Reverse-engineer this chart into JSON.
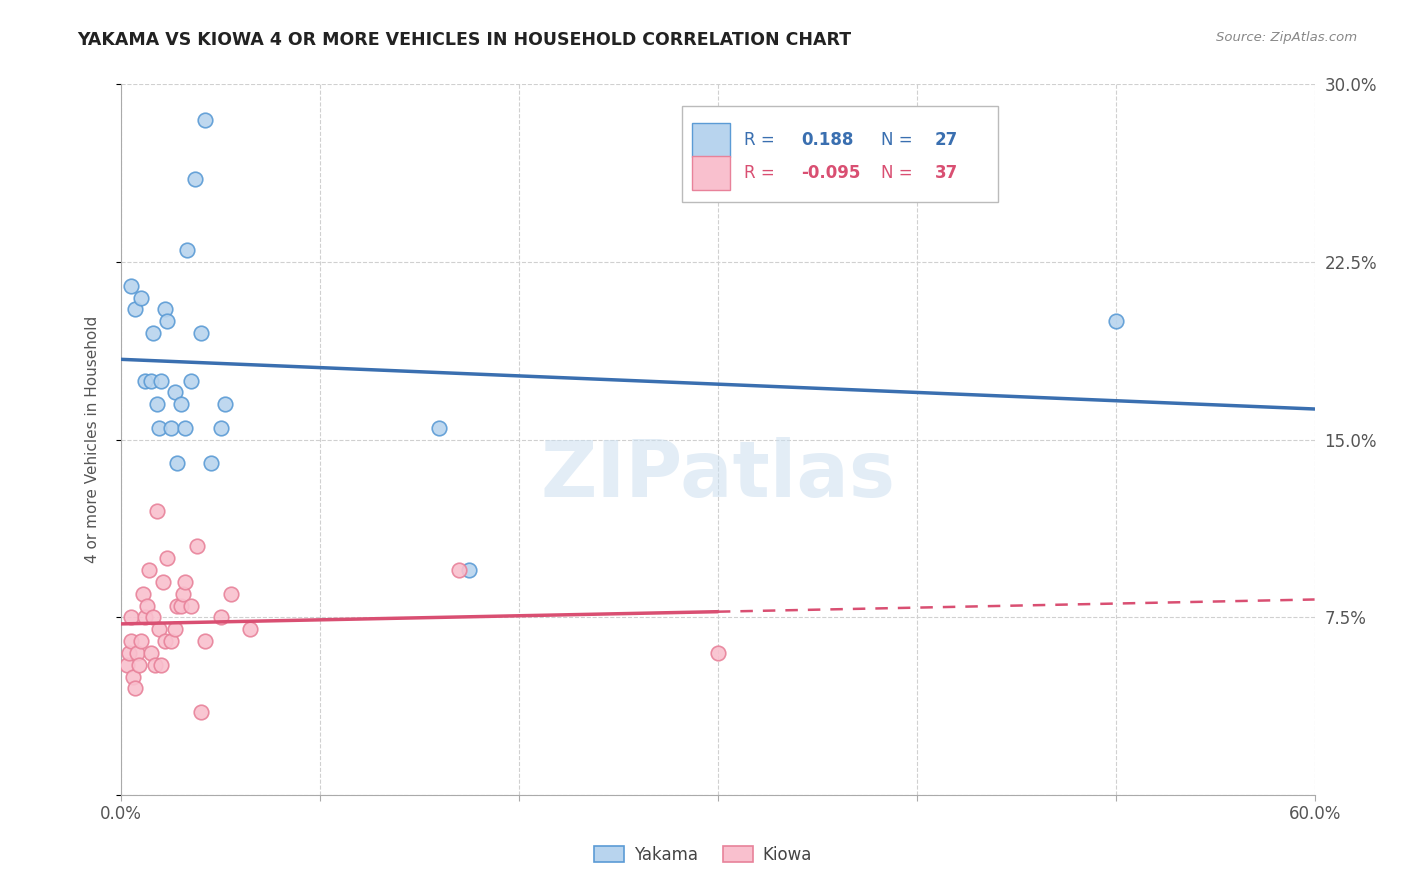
{
  "title": "YAKAMA VS KIOWA 4 OR MORE VEHICLES IN HOUSEHOLD CORRELATION CHART",
  "source": "Source: ZipAtlas.com",
  "ylabel": "4 or more Vehicles in Household",
  "watermark": "ZIPatlas",
  "xlim": [
    0.0,
    0.6
  ],
  "ylim": [
    0.0,
    0.3
  ],
  "xticks": [
    0.0,
    0.1,
    0.2,
    0.3,
    0.4,
    0.5,
    0.6
  ],
  "xtick_labels": [
    "0.0%",
    "",
    "",
    "",
    "",
    "",
    "60.0%"
  ],
  "yticks": [
    0.0,
    0.075,
    0.15,
    0.225,
    0.3
  ],
  "ytick_right_labels": [
    "",
    "7.5%",
    "15.0%",
    "22.5%",
    "30.0%"
  ],
  "yakama_R": 0.188,
  "yakama_N": 27,
  "kiowa_R": -0.095,
  "kiowa_N": 37,
  "yakama_fill": "#b8d4ee",
  "kiowa_fill": "#f9c0ce",
  "yakama_edge": "#5b9bd5",
  "kiowa_edge": "#e8829a",
  "yakama_line": "#3a6fb0",
  "kiowa_line": "#d94f72",
  "background": "#ffffff",
  "grid_color": "#d0d0d0",
  "yakama_x": [
    0.005,
    0.007,
    0.01,
    0.012,
    0.015,
    0.016,
    0.018,
    0.019,
    0.02,
    0.022,
    0.023,
    0.025,
    0.027,
    0.028,
    0.03,
    0.032,
    0.033,
    0.035,
    0.037,
    0.04,
    0.042,
    0.045,
    0.05,
    0.052,
    0.16,
    0.175,
    0.5
  ],
  "yakama_y": [
    0.215,
    0.205,
    0.21,
    0.175,
    0.175,
    0.195,
    0.165,
    0.155,
    0.175,
    0.205,
    0.2,
    0.155,
    0.17,
    0.14,
    0.165,
    0.155,
    0.23,
    0.175,
    0.26,
    0.195,
    0.285,
    0.14,
    0.155,
    0.165,
    0.155,
    0.095,
    0.2
  ],
  "kiowa_x": [
    0.003,
    0.004,
    0.005,
    0.005,
    0.006,
    0.007,
    0.008,
    0.009,
    0.01,
    0.011,
    0.012,
    0.013,
    0.014,
    0.015,
    0.016,
    0.017,
    0.018,
    0.019,
    0.02,
    0.021,
    0.022,
    0.023,
    0.025,
    0.027,
    0.028,
    0.03,
    0.031,
    0.032,
    0.035,
    0.038,
    0.04,
    0.042,
    0.05,
    0.055,
    0.065,
    0.17,
    0.3
  ],
  "kiowa_y": [
    0.055,
    0.06,
    0.065,
    0.075,
    0.05,
    0.045,
    0.06,
    0.055,
    0.065,
    0.085,
    0.075,
    0.08,
    0.095,
    0.06,
    0.075,
    0.055,
    0.12,
    0.07,
    0.055,
    0.09,
    0.065,
    0.1,
    0.065,
    0.07,
    0.08,
    0.08,
    0.085,
    0.09,
    0.08,
    0.105,
    0.035,
    0.065,
    0.075,
    0.085,
    0.07,
    0.095,
    0.06
  ]
}
